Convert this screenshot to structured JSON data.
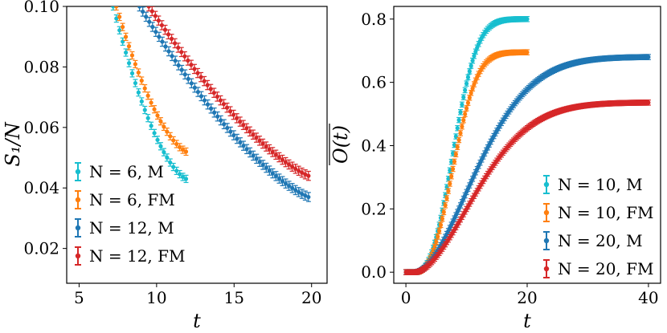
{
  "chart_data": [
    {
      "type": "scatter",
      "panel": "left",
      "xlabel": "t",
      "ylabel": "S₁/N",
      "xlim": [
        4.2,
        21.0
      ],
      "ylim": [
        0.0085,
        0.1
      ],
      "xticks": [
        5,
        10,
        15,
        20
      ],
      "xtick_labels": [
        "5",
        "10",
        "15",
        "20"
      ],
      "yticks": [
        0.02,
        0.04,
        0.06,
        0.08,
        0.1
      ],
      "ytick_labels": [
        "0.02",
        "0.04",
        "0.06",
        "0.08",
        "0.10"
      ],
      "grid": false,
      "legend_position": "lower-left",
      "series": [
        {
          "name": "N = 6, M",
          "color": "#17becf",
          "t_start": 7.2,
          "t_end": 11.9,
          "y_start": 0.1,
          "y_end": 0.043,
          "curve": 0.8,
          "n_points": 24,
          "err": 0.0012
        },
        {
          "name": "N = 6, FM",
          "color": "#ff7f0e",
          "t_start": 7.4,
          "t_end": 11.9,
          "y_start": 0.1,
          "y_end": 0.052,
          "curve": 0.78,
          "n_points": 23,
          "err": 0.0012
        },
        {
          "name": "N = 12, M",
          "color": "#1f77b4",
          "t_start": 8.9,
          "t_end": 19.8,
          "y_start": 0.1,
          "y_end": 0.037,
          "curve": 0.65,
          "n_points": 53,
          "err": 0.0015
        },
        {
          "name": "N = 12, FM",
          "color": "#d62728",
          "t_start": 9.5,
          "t_end": 19.8,
          "y_start": 0.1,
          "y_end": 0.044,
          "curve": 0.62,
          "n_points": 50,
          "err": 0.0015
        }
      ]
    },
    {
      "type": "scatter",
      "panel": "right",
      "xlabel": "t",
      "ylabel": "O(t)",
      "xlim": [
        -2.0,
        42.0
      ],
      "ylim": [
        -0.035,
        0.84
      ],
      "xticks": [
        0,
        20,
        40
      ],
      "xtick_labels": [
        "0",
        "20",
        "40"
      ],
      "yticks": [
        0.0,
        0.2,
        0.4,
        0.6,
        0.8
      ],
      "ytick_labels": [
        "0.0",
        "0.2",
        "0.4",
        "0.6",
        "0.8"
      ],
      "grid": false,
      "legend_position": "lower-right",
      "series": [
        {
          "name": "N = 10, M",
          "color": "#17becf",
          "t_start": 0,
          "t_end": 20,
          "y_max": 0.8,
          "t_delay": 1.5,
          "tau": 7.5,
          "power": 2.5,
          "n_points": 81,
          "err": 0.008
        },
        {
          "name": "N = 10, FM",
          "color": "#ff7f0e",
          "t_start": 0,
          "t_end": 20,
          "y_max": 0.695,
          "t_delay": 1.5,
          "tau": 7.5,
          "power": 2.5,
          "n_points": 81,
          "err": 0.008
        },
        {
          "name": "N = 20, M",
          "color": "#1f77b4",
          "t_start": 0,
          "t_end": 40,
          "y_max": 0.68,
          "t_delay": 1.5,
          "tau": 13.0,
          "power": 1.8,
          "n_points": 161,
          "err": 0.008
        },
        {
          "name": "N = 20, FM",
          "color": "#d62728",
          "t_start": 0,
          "t_end": 40,
          "y_max": 0.536,
          "t_delay": 1.5,
          "tau": 13.0,
          "power": 1.8,
          "n_points": 161,
          "err": 0.008
        }
      ]
    }
  ]
}
